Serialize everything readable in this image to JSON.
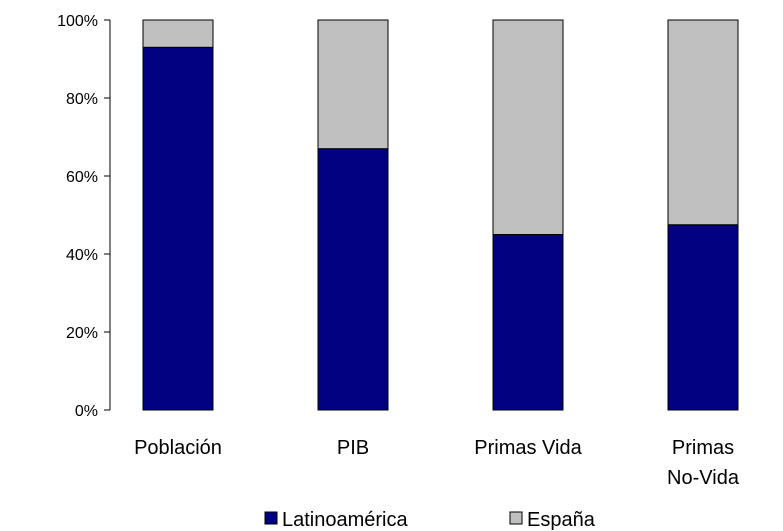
{
  "chart_data": {
    "type": "bar",
    "stacked": true,
    "categories": [
      "Población",
      "PIB",
      "Primas Vida",
      [
        "Primas",
        "No-Vida"
      ]
    ],
    "series": [
      {
        "name": "Latinoamérica",
        "color": "#000080",
        "values": [
          93,
          67,
          45,
          47.5
        ]
      },
      {
        "name": "España",
        "color": "#c0c0c0",
        "values": [
          7,
          33,
          55,
          52.5
        ]
      }
    ],
    "ylim": [
      0,
      100
    ],
    "yticks": [
      "0%",
      "20%",
      "40%",
      "60%",
      "80%",
      "100%"
    ],
    "ytick_values": [
      0,
      20,
      40,
      60,
      80,
      100
    ],
    "grid": false,
    "legend": "bottom",
    "title": "",
    "xlabel": "",
    "ylabel": ""
  }
}
